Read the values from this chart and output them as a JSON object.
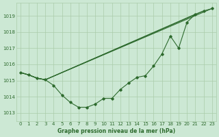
{
  "background_color": "#cce8d4",
  "grid_color": "#aaccaa",
  "line_color": "#2d6a2d",
  "text_color": "#2d6a2d",
  "xlabel": "Graphe pression niveau de la mer (hPa)",
  "xlim": [
    -0.5,
    23.5
  ],
  "ylim": [
    1012.5,
    1019.8
  ],
  "yticks": [
    1013,
    1014,
    1015,
    1016,
    1017,
    1018,
    1019
  ],
  "xticks": [
    0,
    1,
    2,
    3,
    4,
    5,
    6,
    7,
    8,
    9,
    10,
    11,
    12,
    13,
    14,
    15,
    16,
    17,
    18,
    19,
    20,
    21,
    22,
    23
  ],
  "curved_x": [
    0,
    1,
    2,
    3,
    4,
    5,
    6,
    7,
    8,
    9,
    10,
    11,
    12,
    13,
    14,
    15,
    16,
    17,
    18,
    19,
    20,
    21,
    22,
    23
  ],
  "curved_y": [
    1015.5,
    1015.35,
    1015.15,
    1015.05,
    1014.7,
    1014.1,
    1013.65,
    1013.35,
    1013.35,
    1013.55,
    1013.9,
    1013.9,
    1014.45,
    1014.85,
    1015.2,
    1015.3,
    1015.9,
    1016.65,
    1017.75,
    1017.0,
    1018.6,
    1019.1,
    1019.3,
    1019.45
  ],
  "straight_lines": [
    {
      "x": [
        0,
        1,
        2,
        3,
        23
      ],
      "y": [
        1015.5,
        1015.35,
        1015.15,
        1015.05,
        1019.45
      ]
    },
    {
      "x": [
        0,
        1,
        2,
        3,
        22
      ],
      "y": [
        1015.5,
        1015.35,
        1015.15,
        1015.05,
        1019.3
      ]
    },
    {
      "x": [
        0,
        1,
        2,
        3,
        21
      ],
      "y": [
        1015.5,
        1015.35,
        1015.15,
        1015.05,
        1019.1
      ]
    }
  ]
}
